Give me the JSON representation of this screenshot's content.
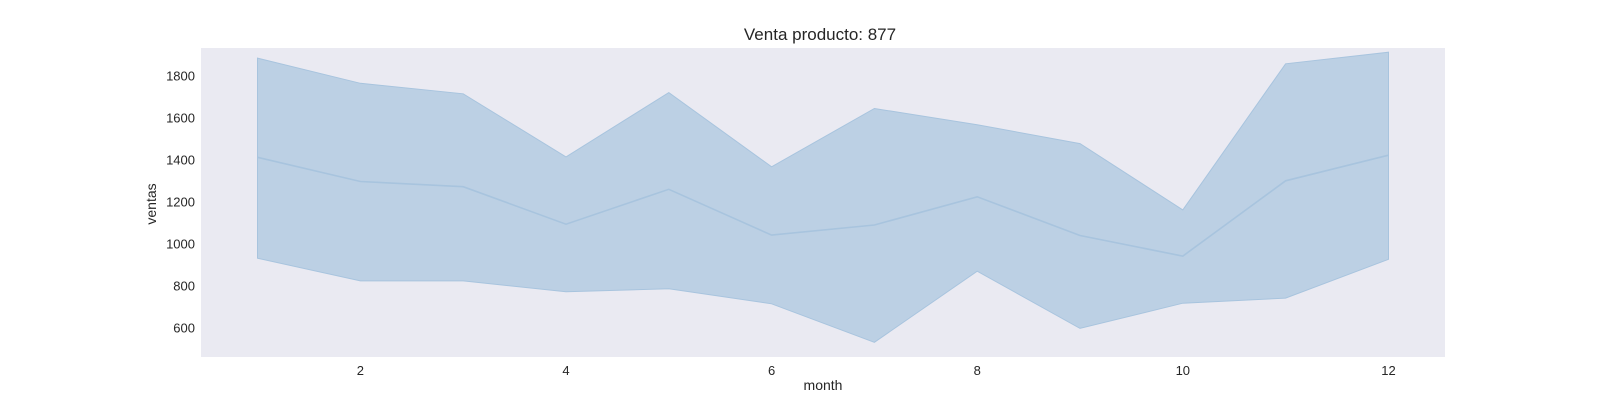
{
  "chart_data": {
    "type": "area",
    "title": "Venta producto: 877",
    "xlabel": "month",
    "ylabel": "ventas",
    "xlim": [
      0.45,
      12.55
    ],
    "ylim": [
      460,
      1930
    ],
    "xticks": [
      2,
      4,
      6,
      8,
      10,
      12
    ],
    "yticks": [
      600,
      800,
      1000,
      1200,
      1400,
      1600,
      1800
    ],
    "grid": false,
    "legend": "none",
    "colors": {
      "plot_background": "#eaeaf2",
      "line": "#a8c4de",
      "band_fill": "#bcd0e4",
      "band_edge": "#a8c4de"
    },
    "series": [
      {
        "x": [
          1,
          2,
          3,
          4,
          5,
          6,
          7,
          8,
          9,
          10,
          11,
          12
        ],
        "values": [
          1410,
          1295,
          1270,
          1092,
          1258,
          1040,
          1088,
          1222,
          1038,
          940,
          1298,
          1420
        ],
        "lower": [
          930,
          822,
          822,
          770,
          785,
          713,
          530,
          868,
          596,
          716,
          740,
          925
        ],
        "upper": [
          1882,
          1762,
          1712,
          1412,
          1718,
          1365,
          1642,
          1565,
          1475,
          1160,
          1855,
          1910
        ]
      }
    ]
  }
}
